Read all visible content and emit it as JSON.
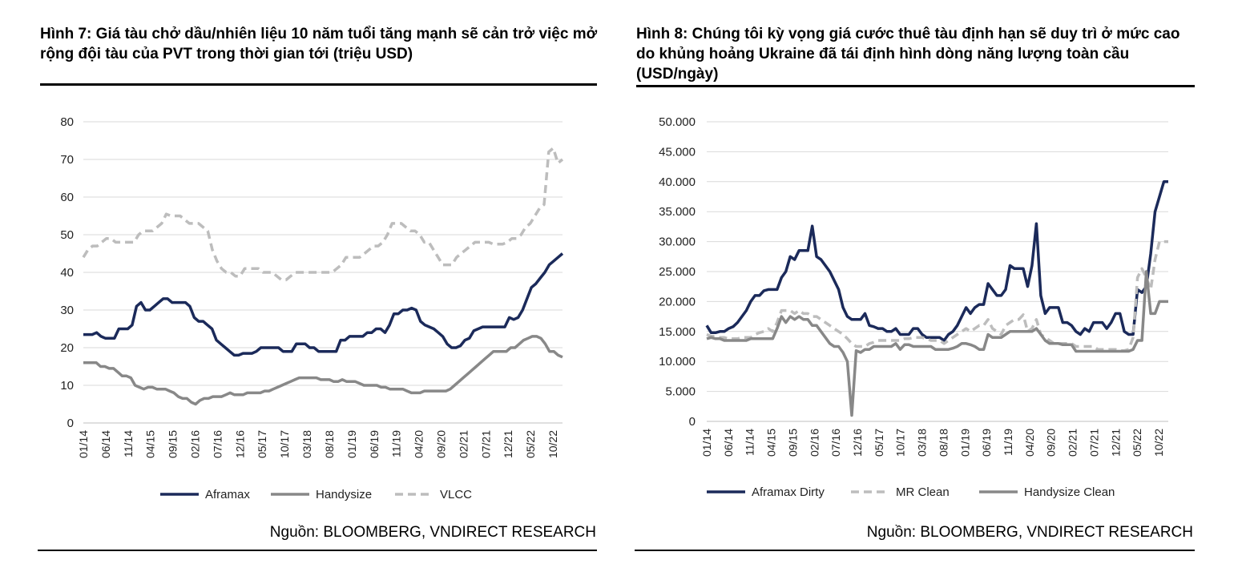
{
  "left": {
    "title": "Hình 7: Giá tàu chở dầu/nhiên liệu 10 năm tuổi tăng mạnh sẽ cản trở việc mở rộng đội tàu của PVT trong thời gian tới (triệu USD)",
    "source": "Nguồn: BLOOMBERG, VNDIRECT RESEARCH"
  },
  "right": {
    "title": "Hình 8: Chúng tôi kỳ vọng giá cước thuê tàu định hạn sẽ duy trì ở mức cao do khủng hoảng Ukraine đã tái định hình dòng năng lượng toàn cầu (USD/ngày)",
    "source": "Nguồn: BLOOMBERG, VNDIRECT RESEARCH"
  },
  "chart_data": [
    {
      "type": "line",
      "title": "Hình 7: Giá tàu chở dầu/nhiên liệu 10 năm tuổi tăng mạnh sẽ cản trở việc mở rộng đội tàu của PVT trong thời gian tới (triệu USD)",
      "x_ticks": [
        "01/14",
        "06/14",
        "11/14",
        "04/15",
        "09/15",
        "02/16",
        "07/16",
        "12/16",
        "05/17",
        "10/17",
        "03/18",
        "08/18",
        "01/19",
        "06/19",
        "11/19",
        "04/20",
        "09/20",
        "02/21",
        "07/21",
        "12/21",
        "05/22",
        "10/22"
      ],
      "y_ticks": [
        "0",
        "10",
        "20",
        "30",
        "40",
        "50",
        "60",
        "70",
        "80"
      ],
      "ylim": [
        0,
        80
      ],
      "grid": true,
      "legend_position": "bottom",
      "series": [
        {
          "name": "Aframax",
          "color": "#1b2a5a",
          "dash": "solid",
          "values": [
            23.5,
            23.5,
            23.5,
            24,
            23,
            22.5,
            22.5,
            22.5,
            25,
            25,
            25,
            26,
            31,
            32,
            30,
            30,
            31,
            32,
            33,
            33,
            32,
            32,
            32,
            32,
            31,
            28,
            27,
            27,
            26,
            25,
            22,
            21,
            20,
            19,
            18,
            18,
            18.5,
            18.5,
            18.5,
            19,
            20,
            20,
            20,
            20,
            20,
            19,
            19,
            19,
            21,
            21,
            21,
            20,
            20,
            19,
            19,
            19,
            19,
            19,
            22,
            22,
            23,
            23,
            23,
            23,
            24,
            24,
            25,
            25,
            24,
            26,
            29,
            29,
            30,
            30,
            30.5,
            30,
            27,
            26,
            25.5,
            25,
            24,
            23,
            21,
            20,
            20,
            20.5,
            22,
            22.5,
            24.5,
            25,
            25.5,
            25.5,
            25.5,
            25.5,
            25.5,
            25.5,
            28,
            27.5,
            28,
            30,
            33,
            36,
            37,
            38.5,
            40,
            42,
            43,
            44,
            45
          ]
        },
        {
          "name": "Handysize",
          "color": "#888888",
          "dash": "solid",
          "values": [
            16,
            16,
            16,
            16,
            15,
            15,
            14.5,
            14.5,
            13.5,
            12.5,
            12.5,
            12,
            10,
            9.5,
            9,
            9.5,
            9.5,
            9,
            9,
            9,
            8.5,
            8,
            7,
            6.5,
            6.5,
            5.5,
            5,
            6,
            6.5,
            6.5,
            7,
            7,
            7,
            7.5,
            8,
            7.5,
            7.5,
            7.5,
            8,
            8,
            8,
            8,
            8.5,
            8.5,
            9,
            9.5,
            10,
            10.5,
            11,
            11.5,
            12,
            12,
            12,
            12,
            12,
            11.5,
            11.5,
            11.5,
            11,
            11,
            11.5,
            11,
            11,
            11,
            10.5,
            10,
            10,
            10,
            10,
            9.5,
            9.5,
            9,
            9,
            9,
            9,
            8.5,
            8,
            8,
            8,
            8.5,
            8.5,
            8.5,
            8.5,
            8.5,
            8.5,
            9,
            10,
            11,
            12,
            13,
            14,
            15,
            16,
            17,
            18,
            19,
            19,
            19,
            19,
            20,
            20,
            21,
            22,
            22.5,
            23,
            23,
            22.5,
            21,
            19,
            19,
            18,
            17.5
          ]
        },
        {
          "name": "VLCC",
          "color": "#bdbdbd",
          "dash": "dashed",
          "values": [
            44,
            46,
            47,
            47,
            48,
            49,
            49,
            48,
            48,
            48,
            48,
            48,
            50,
            51,
            51,
            51,
            52,
            53,
            55.5,
            55,
            55,
            55,
            54,
            53,
            53,
            53,
            52,
            51,
            46,
            43,
            41,
            40,
            40,
            39,
            39,
            41,
            41,
            41,
            41,
            40,
            40,
            40,
            39,
            38,
            38,
            39,
            40,
            40,
            40,
            40,
            40,
            40,
            40,
            40,
            40,
            41,
            42,
            44,
            44,
            44,
            44,
            45,
            46,
            47,
            47,
            48,
            50,
            53,
            53,
            53,
            52,
            51,
            51,
            50,
            48,
            48,
            46,
            44,
            42,
            42,
            42,
            44,
            45,
            46,
            47,
            48,
            48,
            48,
            48,
            47.5,
            47.5,
            47.5,
            48,
            49,
            49,
            50,
            52,
            53,
            55,
            57,
            58,
            72,
            73,
            69,
            70
          ]
        }
      ]
    },
    {
      "type": "line",
      "title": "Hình 8: Chúng tôi kỳ vọng giá cước thuê tàu định hạn sẽ duy trì ở mức cao do khủng hoảng Ukraine đã tái định hình dòng năng lượng toàn cầu (USD/ngày)",
      "x_ticks": [
        "01/14",
        "06/14",
        "11/14",
        "04/15",
        "09/15",
        "02/16",
        "07/16",
        "12/16",
        "05/17",
        "10/17",
        "03/18",
        "08/18",
        "01/19",
        "06/19",
        "11/19",
        "04/20",
        "09/20",
        "02/21",
        "07/21",
        "12/21",
        "05/22",
        "10/22"
      ],
      "y_ticks": [
        "0",
        "5.000",
        "10.000",
        "15.000",
        "20.000",
        "25.000",
        "30.000",
        "35.000",
        "40.000",
        "45.000",
        "50.000"
      ],
      "ylim": [
        0,
        50000
      ],
      "grid": true,
      "legend_position": "bottom",
      "series": [
        {
          "name": "Aframax Dirty",
          "color": "#1b2a5a",
          "dash": "solid",
          "values": [
            16000,
            14800,
            14800,
            15000,
            15000,
            15500,
            15800,
            16500,
            17500,
            18500,
            20000,
            21000,
            21000,
            21800,
            22000,
            22000,
            22000,
            24000,
            25000,
            27500,
            27000,
            28500,
            28500,
            28500,
            32600,
            27500,
            27000,
            26000,
            25000,
            23500,
            22000,
            19000,
            17500,
            17000,
            17000,
            17000,
            18000,
            16000,
            15800,
            15500,
            15500,
            15000,
            15000,
            15500,
            14500,
            14500,
            14500,
            15500,
            15500,
            14500,
            14000,
            14000,
            14000,
            14000,
            13500,
            14500,
            15000,
            16000,
            17500,
            19000,
            18000,
            19000,
            19500,
            19500,
            23000,
            22000,
            21000,
            21000,
            22000,
            26000,
            25500,
            25500,
            25500,
            22500,
            26000,
            33000,
            21000,
            18000,
            19000,
            19000,
            19000,
            16500,
            16500,
            16000,
            15000,
            14500,
            15500,
            15000,
            16500,
            16500,
            16500,
            15500,
            16500,
            18000,
            18000,
            15000,
            14500,
            14500,
            22000,
            21500,
            22500,
            28000,
            35000,
            37500,
            40000,
            40000
          ]
        },
        {
          "name": "MR Clean",
          "color": "#bdbdbd",
          "dash": "dashed",
          "values": [
            14500,
            14200,
            14200,
            14000,
            14000,
            13800,
            13800,
            13800,
            14000,
            14000,
            14000,
            14500,
            14800,
            15000,
            15500,
            15000,
            16500,
            18500,
            18500,
            18500,
            18000,
            18500,
            18000,
            18000,
            17500,
            17500,
            17000,
            16500,
            16000,
            15500,
            15000,
            14500,
            13800,
            13000,
            12500,
            12500,
            12500,
            13000,
            13200,
            13500,
            13500,
            13500,
            13500,
            13500,
            13500,
            13800,
            13800,
            14000,
            14000,
            14000,
            13800,
            13500,
            13500,
            13500,
            13000,
            13500,
            14000,
            14500,
            15000,
            15500,
            15000,
            15500,
            16000,
            16000,
            17000,
            15500,
            15000,
            14500,
            16000,
            16500,
            17000,
            17000,
            17800,
            15000,
            15500,
            17000,
            14500,
            14000,
            13500,
            13000,
            13000,
            13000,
            13000,
            13000,
            12500,
            12500,
            12500,
            12500,
            12500,
            12000,
            12000,
            12000,
            12000,
            12000,
            11800,
            11800,
            12000,
            14000,
            24000,
            25500,
            24000,
            22000,
            27000,
            30000,
            30000,
            30000
          ]
        },
        {
          "name": "Handysize Clean",
          "color": "#888888",
          "dash": "solid",
          "values": [
            13800,
            14000,
            13800,
            13800,
            13500,
            13500,
            13500,
            13500,
            13500,
            13500,
            13800,
            13800,
            13800,
            13800,
            13800,
            13800,
            15500,
            17500,
            16500,
            17500,
            17000,
            17500,
            17000,
            17000,
            16000,
            16000,
            15000,
            14000,
            13000,
            12500,
            12500,
            11500,
            10000,
            1000,
            11800,
            11500,
            12000,
            12000,
            12500,
            12500,
            12500,
            12500,
            12500,
            13000,
            12000,
            12800,
            12800,
            12500,
            12500,
            12500,
            12500,
            12500,
            12000,
            12000,
            12000,
            12000,
            12200,
            12500,
            13000,
            13000,
            12800,
            12500,
            12000,
            12000,
            14500,
            14000,
            14000,
            14000,
            14500,
            15000,
            15000,
            15000,
            15000,
            15000,
            15000,
            15500,
            14500,
            13500,
            13000,
            13000,
            13000,
            12800,
            12800,
            12800,
            11700,
            11700,
            11700,
            11700,
            11700,
            11700,
            11700,
            11700,
            11700,
            11700,
            11700,
            11700,
            11700,
            12000,
            13500,
            13500,
            25000,
            18000,
            18000,
            20000,
            20000,
            20000
          ]
        }
      ]
    }
  ]
}
